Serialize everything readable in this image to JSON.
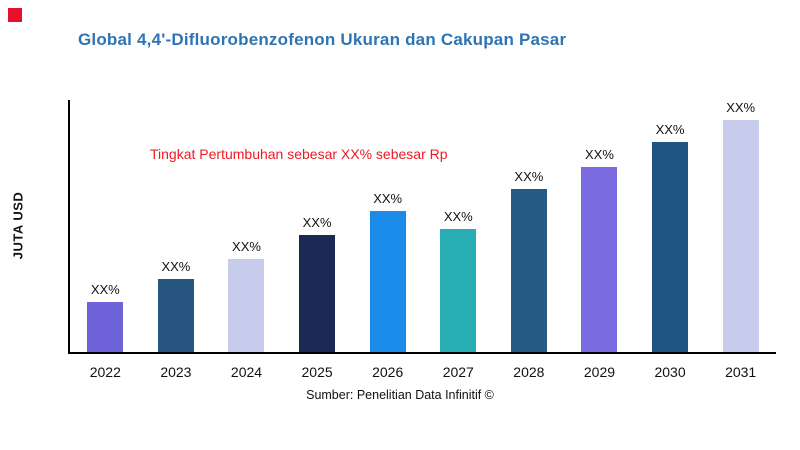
{
  "header": {
    "title": "Global 4,4'-Difluorobenzofenon Ukuran dan Cakupan Pasar"
  },
  "colors": {
    "title_blue": "#2e74b5",
    "annotation_red": "#ef1a23",
    "brand_square_red": "#e8112d",
    "axis_black": "#000000"
  },
  "chart_data": {
    "type": "bar",
    "title": "Global 4,4'-Difluorobenzofenon Ukuran dan Cakupan Pasar",
    "xlabel": "",
    "ylabel": "JUTA USD",
    "annotation": "Tingkat Pertumbuhan sebesar XX% sebesar Rp",
    "source": "Sumber: Penelitian Data Infinitif ©",
    "categories": [
      "2022",
      "2023",
      "2024",
      "2025",
      "2026",
      "2027",
      "2028",
      "2029",
      "2030",
      "2031"
    ],
    "values": [
      50,
      72,
      92,
      116,
      140,
      122,
      162,
      184,
      208,
      230
    ],
    "bar_labels": [
      "XX%",
      "XX%",
      "XX%",
      "XX%",
      "XX%",
      "XX%",
      "XX%",
      "XX%",
      "XX%",
      "XX%"
    ],
    "bar_colors": [
      "#6e62d9",
      "#26567f",
      "#c7cced",
      "#1b2a55",
      "#1c8ceb",
      "#27aeb5",
      "#255a84",
      "#7a6be0",
      "#1f5582",
      "#c7cced"
    ],
    "ylim": [
      0,
      250
    ],
    "grid": false,
    "legend": "none",
    "y_ticks_visible": false
  }
}
